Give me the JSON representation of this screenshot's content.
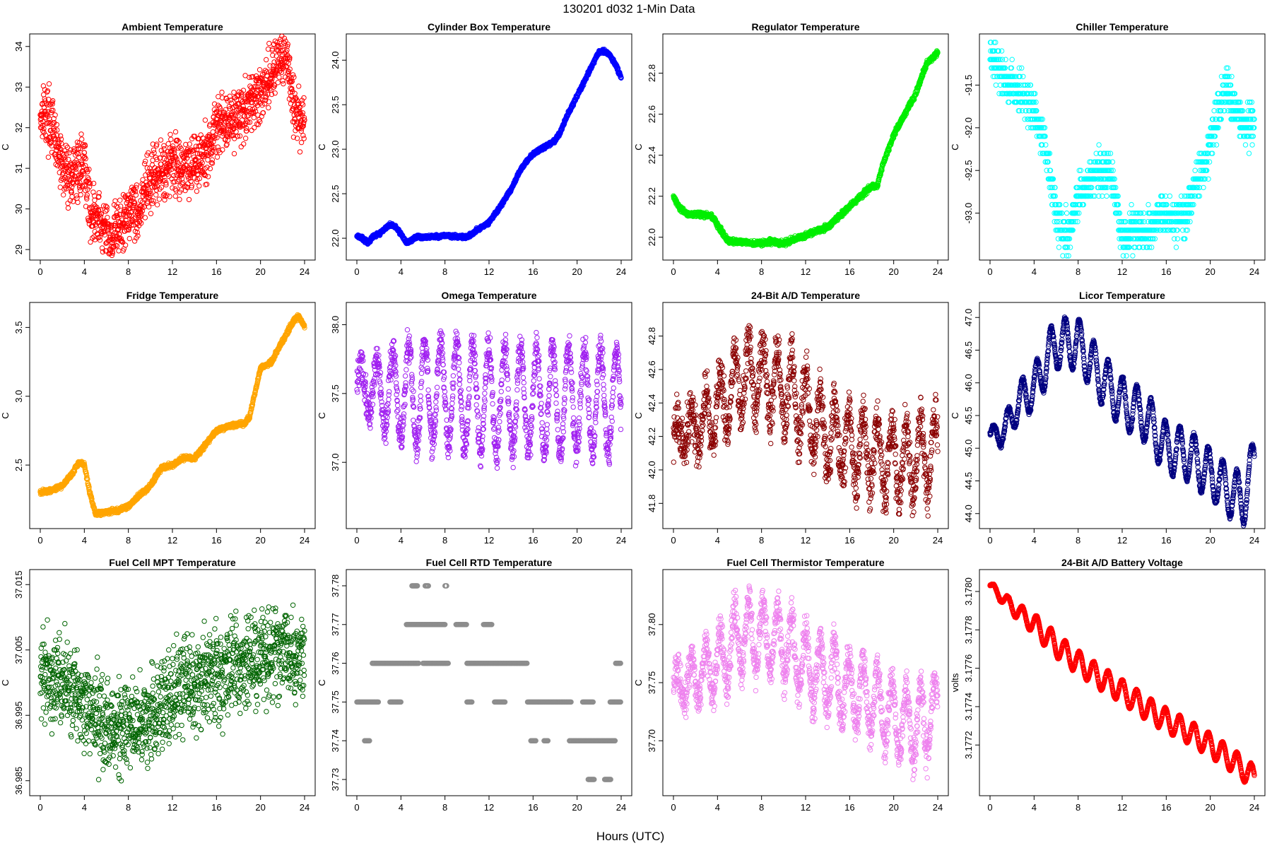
{
  "figure": {
    "title": "130201    d032    1-Min Data",
    "xlabel": "Hours (UTC)"
  },
  "chart_data": [
    {
      "type": "scatter",
      "title": "Ambient Temperature",
      "ylabel": "C",
      "color": "#ff0000",
      "xlim": [
        0,
        24
      ],
      "xticks": [
        0,
        4,
        8,
        12,
        16,
        20,
        24
      ],
      "ylim": [
        28.95,
        34.1
      ],
      "yticks": [
        29,
        30,
        31,
        32,
        33,
        34
      ],
      "ytick_labels": [
        "29",
        "30",
        "31",
        "32",
        "33",
        "34"
      ],
      "series": [
        {
          "name": "Ambient Temperature",
          "x": [
            0,
            0.3,
            0.6,
            1,
            1.5,
            2,
            2.5,
            3,
            3.5,
            4,
            4.5,
            5,
            5.5,
            6,
            6.5,
            7,
            7.5,
            8,
            8.5,
            9,
            9.5,
            10,
            11,
            12,
            13,
            14,
            15,
            15.5,
            16,
            17,
            18,
            19,
            20,
            20.5,
            21,
            21.5,
            22,
            22.5,
            23,
            23.5,
            24
          ],
          "y": [
            32.3,
            32.5,
            32.3,
            32.1,
            31.5,
            31,
            30.9,
            30.8,
            31,
            31.2,
            30,
            29.8,
            29.6,
            29.4,
            29.3,
            29.6,
            29.5,
            30,
            30.1,
            29.8,
            30.5,
            30.6,
            30.9,
            31.2,
            31,
            31.2,
            31.3,
            31.6,
            32,
            32.2,
            32.3,
            32.5,
            32.9,
            33.1,
            33.3,
            33.8,
            33.5,
            33.7,
            32.5,
            32.3,
            32.1
          ],
          "noise": 0.35
        }
      ]
    },
    {
      "type": "scatter",
      "title": "Cylinder Box Temperature",
      "ylabel": "C",
      "color": "#0000ff",
      "xlim": [
        0,
        24
      ],
      "xticks": [
        0,
        4,
        8,
        12,
        16,
        20,
        24
      ],
      "ylim": [
        21.85,
        24.2
      ],
      "yticks": [
        22,
        22.5,
        23,
        23.5,
        24
      ],
      "ytick_labels": [
        "22.0",
        "22.5",
        "23.0",
        "23.5",
        "24.0"
      ],
      "series": [
        {
          "name": "Cylinder Box Temperature",
          "x": [
            0,
            0.5,
            1,
            1.5,
            2,
            2.5,
            3,
            3.5,
            4,
            4.5,
            5,
            5.5,
            6,
            7,
            8,
            9,
            10,
            11,
            12,
            13,
            14,
            15,
            16,
            17,
            18,
            18.5,
            19,
            20,
            21,
            22,
            22.5,
            23,
            23.5,
            24
          ],
          "y": [
            22.03,
            22,
            21.95,
            22.02,
            22.05,
            22.1,
            22.15,
            22.13,
            22.05,
            21.95,
            21.98,
            22.02,
            22.01,
            22.02,
            22.03,
            22.02,
            22.01,
            22.1,
            22.18,
            22.35,
            22.55,
            22.8,
            22.95,
            23.02,
            23.1,
            23.2,
            23.35,
            23.6,
            23.85,
            24.1,
            24.1,
            24.05,
            23.95,
            23.8
          ],
          "noise": 0.01
        }
      ]
    },
    {
      "type": "scatter",
      "title": "Regulator Temperature",
      "ylabel": "C",
      "color": "#00ee00",
      "xlim": [
        0,
        24
      ],
      "xticks": [
        0,
        4,
        8,
        12,
        16,
        20,
        24
      ],
      "ylim": [
        21.93,
        22.95
      ],
      "yticks": [
        22,
        22.2,
        22.4,
        22.6,
        22.8
      ],
      "ytick_labels": [
        "22.0",
        "22.2",
        "22.4",
        "22.6",
        "22.8"
      ],
      "series": [
        {
          "name": "Regulator Temperature",
          "x": [
            0,
            0.5,
            1,
            1.5,
            2,
            2.5,
            3,
            3.5,
            4,
            4.5,
            5,
            6,
            7,
            8,
            9,
            10,
            11,
            12,
            13,
            14,
            15,
            16,
            17,
            18,
            18.5,
            19,
            20,
            21,
            22,
            23,
            24
          ],
          "y": [
            22.2,
            22.15,
            22.12,
            22.11,
            22.11,
            22.11,
            22.11,
            22.1,
            22.06,
            22.02,
            21.98,
            21.98,
            21.97,
            21.97,
            21.98,
            21.97,
            21.99,
            22.01,
            22.03,
            22.05,
            22.1,
            22.15,
            22.2,
            22.25,
            22.25,
            22.35,
            22.5,
            22.6,
            22.7,
            22.85,
            22.9
          ],
          "noise": 0.006
        }
      ]
    },
    {
      "type": "scatter",
      "title": "Chiller Temperature",
      "ylabel": "C",
      "color": "#00ffff",
      "xlim": [
        0,
        24
      ],
      "xticks": [
        0,
        4,
        8,
        12,
        16,
        20,
        24
      ],
      "ylim": [
        -93.45,
        -91
      ],
      "yticks": [
        -93,
        -92.5,
        -92,
        -91.5
      ],
      "ytick_labels": [
        "-93.0",
        "-92.5",
        "-92.0",
        "-91.5"
      ],
      "step": 0.1,
      "series": [
        {
          "name": "Chiller Temperature",
          "x": [
            0,
            0.5,
            1,
            2,
            3,
            4,
            5,
            5.5,
            6,
            7,
            7.5,
            8,
            9,
            10,
            11,
            11.5,
            12,
            13,
            14,
            15,
            15.5,
            16,
            17,
            18,
            19,
            20,
            20.5,
            21,
            21.5,
            22,
            23,
            24
          ],
          "y": [
            -91.1,
            -91.25,
            -91.4,
            -91.5,
            -91.6,
            -91.8,
            -92.2,
            -92.6,
            -93,
            -93.3,
            -93.1,
            -92.8,
            -92.6,
            -92.5,
            -92.5,
            -92.9,
            -93.3,
            -93.2,
            -93.2,
            -93.1,
            -93,
            -93,
            -93.1,
            -92.9,
            -92.6,
            -92.2,
            -91.9,
            -91.7,
            -91.5,
            -91.7,
            -92,
            -91.9
          ],
          "noise": 0.12
        }
      ]
    },
    {
      "type": "scatter",
      "title": "Fridge Temperature",
      "ylabel": "C",
      "color": "#ffa500",
      "xlim": [
        0,
        24
      ],
      "xticks": [
        0,
        4,
        8,
        12,
        16,
        20,
        24
      ],
      "ylim": [
        2.1,
        3.62
      ],
      "yticks": [
        2.5,
        3,
        3.5
      ],
      "ytick_labels": [
        "2.5",
        "3.0",
        "3.5"
      ],
      "series": [
        {
          "name": "Fridge Temperature",
          "x": [
            0,
            1,
            2,
            3,
            3.5,
            4,
            4.5,
            5,
            5.5,
            6,
            7,
            8,
            9,
            10,
            11,
            12,
            13,
            14,
            15,
            16,
            17,
            18,
            18.5,
            19,
            20,
            21,
            22,
            23,
            23.5,
            24
          ],
          "y": [
            2.3,
            2.32,
            2.35,
            2.45,
            2.52,
            2.5,
            2.3,
            2.15,
            2.15,
            2.16,
            2.17,
            2.2,
            2.28,
            2.35,
            2.48,
            2.5,
            2.55,
            2.55,
            2.65,
            2.75,
            2.78,
            2.8,
            2.8,
            2.85,
            3.2,
            3.25,
            3.4,
            3.55,
            3.58,
            3.5
          ],
          "noise": 0.008
        }
      ]
    },
    {
      "type": "scatter",
      "title": "Omega Temperature",
      "ylabel": "C",
      "color": "#a020f0",
      "xlim": [
        0,
        24
      ],
      "xticks": [
        0,
        4,
        8,
        12,
        16,
        20,
        24
      ],
      "ylim": [
        36.58,
        38.1
      ],
      "yticks": [
        37,
        37.5,
        38
      ],
      "ytick_labels": [
        "37.0",
        "37.5",
        "38.0"
      ],
      "oscillation": {
        "period": 1.45,
        "amplitude": 0.38,
        "amp_start": 0.15
      },
      "series": [
        {
          "name": "Omega Temperature",
          "x": [
            0,
            4,
            8,
            12,
            16,
            20,
            24
          ],
          "y": [
            37.55,
            37.5,
            37.5,
            37.45,
            37.45,
            37.45,
            37.45
          ],
          "noise": 0.06
        }
      ]
    },
    {
      "type": "scatter",
      "title": "24-Bit A/D Temperature",
      "ylabel": "C",
      "color": "#8b0000",
      "xlim": [
        0,
        24
      ],
      "xticks": [
        0,
        4,
        8,
        12,
        16,
        20,
        24
      ],
      "ylim": [
        41.7,
        42.95
      ],
      "yticks": [
        41.8,
        42,
        42.2,
        42.4,
        42.6,
        42.8
      ],
      "ytick_labels": [
        "41.8",
        "42.0",
        "42.2",
        "42.4",
        "42.6",
        "42.8"
      ],
      "oscillation": {
        "period": 1.3,
        "amplitude": 0.22,
        "amp_start": 0.08
      },
      "series": [
        {
          "name": "24-Bit A/D Temperature",
          "x": [
            0,
            2,
            4,
            6,
            8,
            10,
            12,
            14,
            16,
            18,
            20,
            22,
            24
          ],
          "y": [
            42.2,
            42.25,
            42.35,
            42.55,
            42.55,
            42.5,
            42.35,
            42.2,
            42.15,
            42.1,
            42.05,
            42.05,
            42.1
          ],
          "noise": 0.07
        }
      ]
    },
    {
      "type": "scatter",
      "title": "Licor Temperature",
      "ylabel": "C",
      "color": "#000080",
      "xlim": [
        0,
        24
      ],
      "xticks": [
        0,
        4,
        8,
        12,
        16,
        20,
        24
      ],
      "ylim": [
        43.9,
        47.1
      ],
      "yticks": [
        44,
        44.5,
        45,
        45.5,
        46,
        46.5,
        47
      ],
      "ytick_labels": [
        "44.0",
        "44.5",
        "45.0",
        "45.5",
        "46.0",
        "46.5",
        "47.0"
      ],
      "oscillation": {
        "period": 1.3,
        "amplitude": 0.38,
        "amp_start": 0.12
      },
      "series": [
        {
          "name": "Licor Temperature",
          "x": [
            0,
            1,
            2,
            3,
            4,
            5,
            6,
            7,
            8,
            10,
            12,
            14,
            16,
            18,
            20,
            22,
            23,
            24
          ],
          "y": [
            45.2,
            45.2,
            45.5,
            45.8,
            45.9,
            46.3,
            46.6,
            46.6,
            46.6,
            46.1,
            45.7,
            45.5,
            45,
            44.9,
            44.6,
            44.3,
            44.2,
            44.8
          ],
          "noise": 0.02
        }
      ]
    },
    {
      "type": "scatter",
      "title": "Fuel Cell MPT Temperature",
      "ylabel": "C",
      "color": "#006400",
      "xlim": [
        0,
        24
      ],
      "xticks": [
        0,
        4,
        8,
        12,
        16,
        20,
        24
      ],
      "ylim": [
        36.984,
        37.016
      ],
      "yticks": [
        36.985,
        36.995,
        37.005,
        37.015
      ],
      "ytick_labels": [
        "36.985",
        "36.995",
        "37.005",
        "37.015"
      ],
      "series": [
        {
          "name": "Fuel Cell MPT Temperature",
          "x": [
            0,
            2,
            4,
            6,
            7,
            8,
            10,
            12,
            14,
            16,
            18,
            20,
            22,
            24
          ],
          "y": [
            37.002,
            37.0,
            36.997,
            36.993,
            36.992,
            36.993,
            36.995,
            36.998,
            37.0,
            37.001,
            37.003,
            37.004,
            37.005,
            37.004
          ],
          "noise": 0.0035
        }
      ]
    },
    {
      "type": "scatter",
      "title": "Fuel Cell RTD Temperature",
      "ylabel": "C",
      "color": "#8c8c8c",
      "xlim": [
        0,
        24
      ],
      "xticks": [
        0,
        4,
        8,
        12,
        16,
        20,
        24
      ],
      "ylim": [
        37.728,
        37.782
      ],
      "yticks": [
        37.73,
        37.74,
        37.75,
        37.76,
        37.77,
        37.78
      ],
      "ytick_labels": [
        "37.73",
        "37.74",
        "37.75",
        "37.76",
        "37.77",
        "37.78"
      ],
      "levels": [
        {
          "y": 37.78,
          "ranges": [
            [
              5,
              5.5
            ],
            [
              6.2,
              6.5
            ],
            [
              8,
              8.2
            ]
          ]
        },
        {
          "y": 37.77,
          "ranges": [
            [
              4.5,
              8
            ],
            [
              9,
              10
            ],
            [
              11.5,
              12.3
            ]
          ]
        },
        {
          "y": 37.76,
          "ranges": [
            [
              1.4,
              5.6
            ],
            [
              6,
              8.3
            ],
            [
              10,
              15.5
            ],
            [
              23.5,
              24
            ]
          ]
        },
        {
          "y": 37.75,
          "ranges": [
            [
              0,
              2
            ],
            [
              3,
              4
            ],
            [
              10,
              10.5
            ],
            [
              12.5,
              13.5
            ],
            [
              15.5,
              19.5
            ],
            [
              20.5,
              21.5
            ],
            [
              23,
              24
            ]
          ]
        },
        {
          "y": 37.74,
          "ranges": [
            [
              0.7,
              1.2
            ],
            [
              15.8,
              16.3
            ],
            [
              17,
              17.4
            ],
            [
              19.3,
              23.5
            ]
          ]
        },
        {
          "y": 37.73,
          "ranges": [
            [
              21,
              21.6
            ],
            [
              22.5,
              23.1
            ]
          ]
        }
      ],
      "series": [
        {
          "name": "Fuel Cell RTD Temperature",
          "x": [
            0,
            24
          ],
          "y": [
            37.75,
            37.75
          ],
          "noise": 0
        }
      ]
    },
    {
      "type": "scatter",
      "title": "Fuel Cell Thermistor Temperature",
      "ylabel": "C",
      "color": "#ee82ee",
      "xlim": [
        0,
        24
      ],
      "xticks": [
        0,
        4,
        8,
        12,
        16,
        20,
        24
      ],
      "ylim": [
        37.66,
        37.84
      ],
      "yticks": [
        37.7,
        37.75,
        37.8
      ],
      "ytick_labels": [
        "37.70",
        "37.75",
        "37.80"
      ],
      "oscillation": {
        "period": 1.3,
        "amplitude": 0.03,
        "amp_start": 0.012
      },
      "series": [
        {
          "name": "Fuel Cell Thermistor Temperature",
          "x": [
            0,
            2,
            4,
            6,
            8,
            10,
            12,
            14,
            16,
            18,
            20,
            22,
            24
          ],
          "y": [
            37.745,
            37.755,
            37.765,
            37.79,
            37.79,
            37.785,
            37.765,
            37.755,
            37.745,
            37.735,
            37.72,
            37.71,
            37.725
          ],
          "noise": 0.008
        }
      ]
    },
    {
      "type": "scatter",
      "title": "24-Bit A/D Battery Voltage",
      "ylabel": "volts",
      "color": "#ff0000",
      "xlim": [
        0,
        24
      ],
      "xticks": [
        0,
        4,
        8,
        12,
        16,
        20,
        24
      ],
      "ylim": [
        3.17698,
        3.17807
      ],
      "yticks": [
        3.1772,
        3.1774,
        3.1776,
        3.1778,
        3.178
      ],
      "ytick_labels": [
        "3.1772",
        "3.1774",
        "3.1776",
        "3.1778",
        "3.1780"
      ],
      "oscillation": {
        "period": 1.3,
        "amplitude": 6e-05,
        "amp_start": 2e-05
      },
      "series": [
        {
          "name": "24-Bit A/D Battery Voltage",
          "x": [
            0,
            2,
            4,
            6,
            8,
            10,
            12,
            14,
            16,
            18,
            20,
            22,
            24
          ],
          "y": [
            3.17803,
            3.17792,
            3.17783,
            3.17772,
            3.17763,
            3.17755,
            3.17748,
            3.1774,
            3.17733,
            3.17727,
            3.1772,
            3.17712,
            3.17703
          ],
          "noise": 2e-06
        }
      ]
    }
  ]
}
